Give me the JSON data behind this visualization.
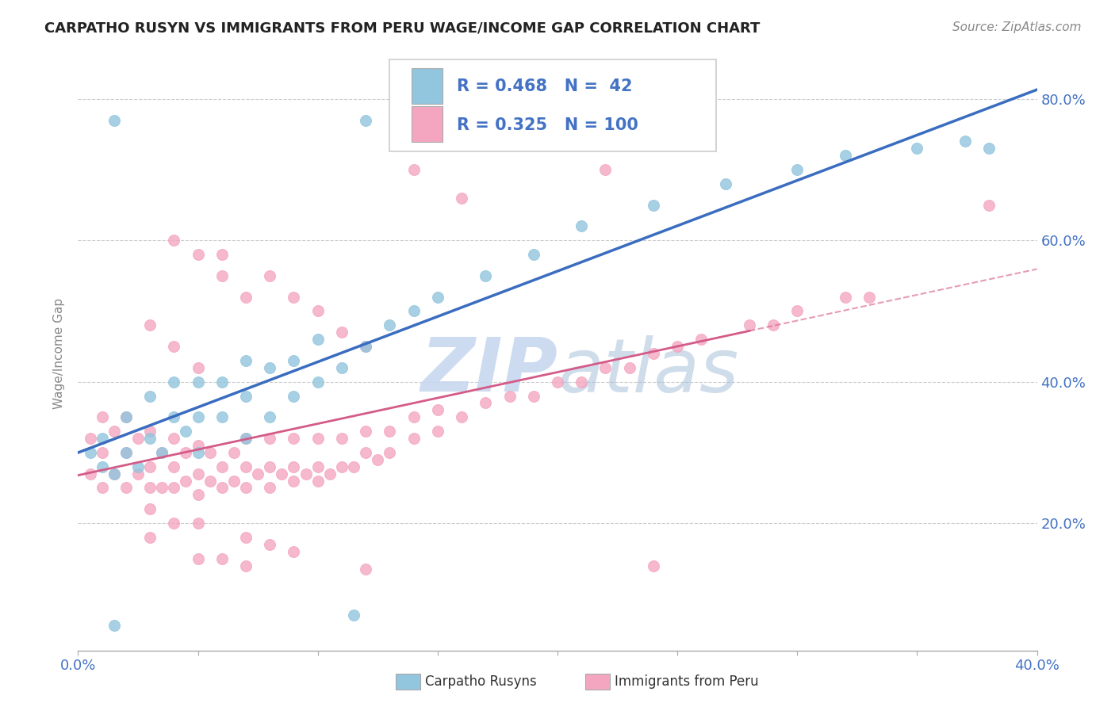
{
  "title": "CARPATHO RUSYN VS IMMIGRANTS FROM PERU WAGE/INCOME GAP CORRELATION CHART",
  "source": "Source: ZipAtlas.com",
  "ylabel": "Wage/Income Gap",
  "y_ticks_labels": [
    "20.0%",
    "40.0%",
    "60.0%",
    "80.0%"
  ],
  "y_tick_vals": [
    0.2,
    0.4,
    0.6,
    0.8
  ],
  "xlim": [
    0.0,
    0.4
  ],
  "ylim": [
    0.02,
    0.86
  ],
  "legend": {
    "R1": "0.468",
    "N1": "42",
    "R2": "0.325",
    "N2": "100"
  },
  "blue_scatter_color": "#92c5de",
  "pink_scatter_color": "#f4a6c0",
  "blue_line_color": "#3a6dbf",
  "pink_line_color": "#d45b88",
  "pink_dash_color": "#d45b88",
  "watermark_color": "#c8d8f0",
  "blue_scatter": {
    "x": [
      0.005,
      0.01,
      0.01,
      0.015,
      0.02,
      0.02,
      0.025,
      0.03,
      0.03,
      0.035,
      0.04,
      0.04,
      0.045,
      0.05,
      0.05,
      0.05,
      0.06,
      0.06,
      0.07,
      0.07,
      0.07,
      0.08,
      0.08,
      0.09,
      0.09,
      0.1,
      0.1,
      0.11,
      0.12,
      0.13,
      0.14,
      0.15,
      0.17,
      0.19,
      0.21,
      0.24,
      0.27,
      0.3,
      0.32,
      0.35,
      0.37,
      0.38
    ],
    "y": [
      0.3,
      0.28,
      0.32,
      0.27,
      0.3,
      0.35,
      0.28,
      0.32,
      0.38,
      0.3,
      0.35,
      0.4,
      0.33,
      0.3,
      0.35,
      0.4,
      0.35,
      0.4,
      0.32,
      0.38,
      0.43,
      0.35,
      0.42,
      0.38,
      0.43,
      0.4,
      0.46,
      0.42,
      0.45,
      0.48,
      0.5,
      0.52,
      0.55,
      0.58,
      0.62,
      0.65,
      0.68,
      0.7,
      0.72,
      0.73,
      0.74,
      0.73
    ]
  },
  "pink_scatter": {
    "x": [
      0.005,
      0.005,
      0.01,
      0.01,
      0.01,
      0.015,
      0.015,
      0.02,
      0.02,
      0.02,
      0.025,
      0.025,
      0.03,
      0.03,
      0.03,
      0.035,
      0.035,
      0.04,
      0.04,
      0.04,
      0.045,
      0.045,
      0.05,
      0.05,
      0.05,
      0.055,
      0.055,
      0.06,
      0.06,
      0.065,
      0.065,
      0.07,
      0.07,
      0.07,
      0.075,
      0.08,
      0.08,
      0.08,
      0.085,
      0.09,
      0.09,
      0.09,
      0.095,
      0.1,
      0.1,
      0.1,
      0.105,
      0.11,
      0.11,
      0.115,
      0.12,
      0.12,
      0.125,
      0.13,
      0.13,
      0.14,
      0.14,
      0.15,
      0.15,
      0.16,
      0.17,
      0.18,
      0.19,
      0.2,
      0.21,
      0.22,
      0.23,
      0.24,
      0.25,
      0.26,
      0.28,
      0.29,
      0.3,
      0.32,
      0.33,
      0.14,
      0.16,
      0.06,
      0.08,
      0.09,
      0.1,
      0.11,
      0.12,
      0.05,
      0.07,
      0.08,
      0.09,
      0.05,
      0.06,
      0.07,
      0.04,
      0.05,
      0.06,
      0.07,
      0.03,
      0.04,
      0.05,
      0.03,
      0.04,
      0.03
    ],
    "y": [
      0.27,
      0.32,
      0.25,
      0.3,
      0.35,
      0.27,
      0.33,
      0.25,
      0.3,
      0.35,
      0.27,
      0.32,
      0.25,
      0.28,
      0.33,
      0.25,
      0.3,
      0.25,
      0.28,
      0.32,
      0.26,
      0.3,
      0.24,
      0.27,
      0.31,
      0.26,
      0.3,
      0.25,
      0.28,
      0.26,
      0.3,
      0.25,
      0.28,
      0.32,
      0.27,
      0.25,
      0.28,
      0.32,
      0.27,
      0.26,
      0.28,
      0.32,
      0.27,
      0.26,
      0.28,
      0.32,
      0.27,
      0.28,
      0.32,
      0.28,
      0.3,
      0.33,
      0.29,
      0.3,
      0.33,
      0.32,
      0.35,
      0.33,
      0.36,
      0.35,
      0.37,
      0.38,
      0.38,
      0.4,
      0.4,
      0.42,
      0.42,
      0.44,
      0.45,
      0.46,
      0.48,
      0.48,
      0.5,
      0.52,
      0.52,
      0.7,
      0.66,
      0.58,
      0.55,
      0.52,
      0.5,
      0.47,
      0.45,
      0.2,
      0.18,
      0.17,
      0.16,
      0.15,
      0.15,
      0.14,
      0.6,
      0.58,
      0.55,
      0.52,
      0.48,
      0.45,
      0.42,
      0.22,
      0.2,
      0.18
    ]
  },
  "blue_outliers": {
    "x": [
      0.015,
      0.12
    ],
    "y": [
      0.78,
      0.78
    ]
  },
  "pink_outliers_high": {
    "x": [
      0.22,
      0.38
    ],
    "y": [
      0.7,
      0.65
    ]
  },
  "blue_low": {
    "x": [
      0.015,
      0.12
    ],
    "y": [
      0.05,
      0.07
    ]
  },
  "pink_low": {
    "x": [
      0.12,
      0.24
    ],
    "y": [
      0.13,
      0.14
    ]
  }
}
